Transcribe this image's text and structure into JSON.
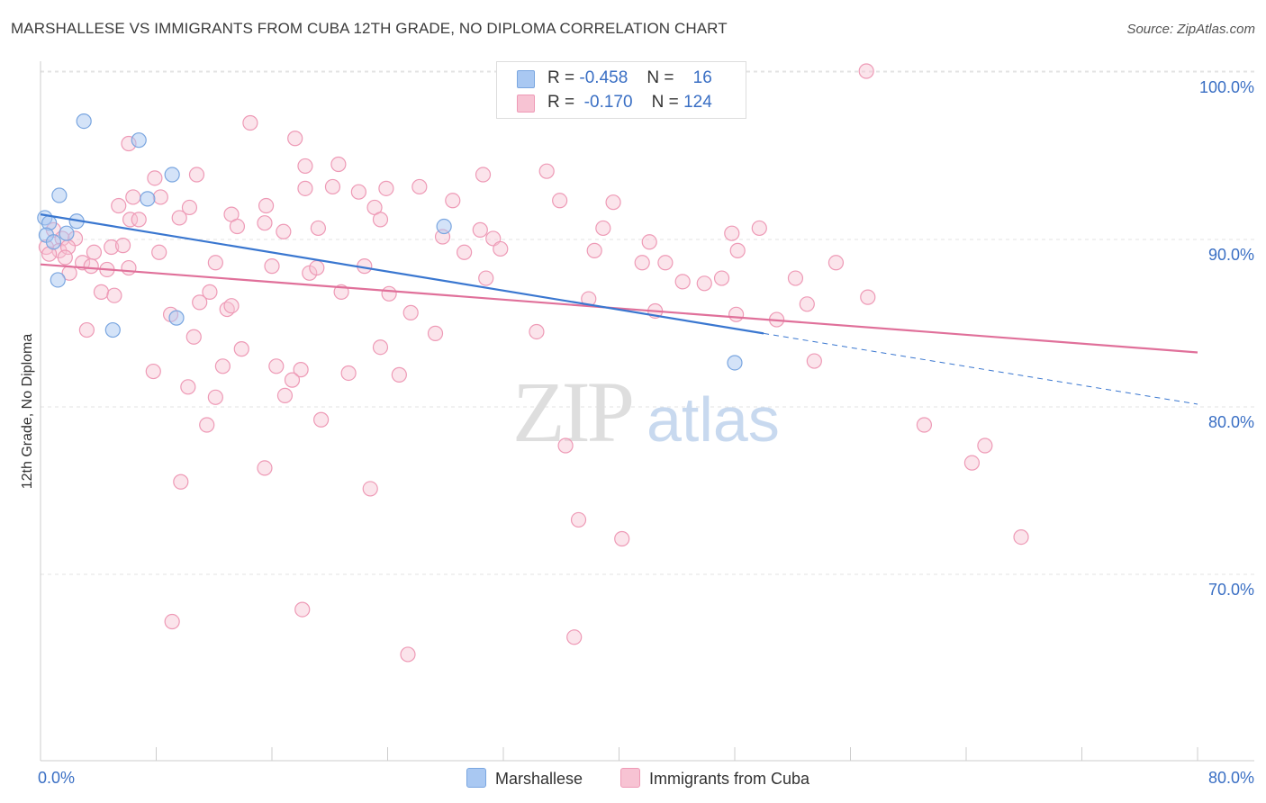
{
  "title": "MARSHALLESE VS IMMIGRANTS FROM CUBA 12TH GRADE, NO DIPLOMA CORRELATION CHART",
  "source": "Source: ZipAtlas.com",
  "watermark": {
    "zip": "ZIP",
    "atlas": "atlas"
  },
  "legend": {
    "marshallese": {
      "r_label": "R =",
      "r_value": "-0.458",
      "n_label": "N =",
      "n_value": "16"
    },
    "cuba": {
      "r_label": "R =",
      "r_value": "-0.170",
      "n_label": "N =",
      "n_value": "124"
    }
  },
  "bottom_legend": {
    "marshallese": "Marshallese",
    "cuba": "Immigrants from Cuba"
  },
  "colors": {
    "marshallese_fill": "#a9c8f2",
    "marshallese_stroke": "#7aa6e0",
    "marshallese_line": "#3a77d0",
    "cuba_fill": "#f7c3d3",
    "cuba_stroke": "#ee9ab6",
    "cuba_line": "#e0709a",
    "tick_label": "#3a6fc4",
    "grid": "#e3e3e3"
  },
  "chart_data": {
    "type": "scatter",
    "title": "MARSHALLESE VS IMMIGRANTS FROM CUBA 12TH GRADE, NO DIPLOMA CORRELATION CHART",
    "xlabel": "",
    "ylabel": "12th Grade, No Diploma",
    "xlim": [
      0,
      80
    ],
    "ylim": [
      59,
      101.5
    ],
    "x_tick_labels": [
      "0.0%",
      "80.0%"
    ],
    "y_ticks": [
      70,
      80,
      90,
      100
    ],
    "y_tick_labels": [
      "70.0%",
      "80.0%",
      "90.0%",
      "100.0%"
    ],
    "grid": true,
    "legend_position": "top-center",
    "series": [
      {
        "name": "Marshallese",
        "r": -0.458,
        "n": 16,
        "trend": {
          "x": [
            0,
            50
          ],
          "y": [
            91.7,
            84.8
          ],
          "dashed_to": [
            80,
            80.7
          ]
        },
        "points": [
          [
            0.3,
            91.5
          ],
          [
            0.6,
            91.2
          ],
          [
            0.4,
            90.5
          ],
          [
            0.9,
            90.1
          ],
          [
            1.3,
            92.8
          ],
          [
            1.2,
            87.9
          ],
          [
            2.5,
            91.3
          ],
          [
            1.8,
            90.6
          ],
          [
            3,
            97.1
          ],
          [
            5,
            85
          ],
          [
            6.8,
            96
          ],
          [
            7.4,
            92.6
          ],
          [
            9.1,
            94
          ],
          [
            9.4,
            85.7
          ],
          [
            27.9,
            91
          ],
          [
            48,
            83.1
          ]
        ]
      },
      {
        "name": "Immigrants from Cuba",
        "r": -0.17,
        "n": 124,
        "trend": {
          "x": [
            0,
            80
          ],
          "y": [
            88.8,
            83.7
          ]
        },
        "points": [
          [
            57.1,
            100
          ],
          [
            14.5,
            97
          ],
          [
            17.6,
            96.1
          ],
          [
            6.1,
            95.8
          ],
          [
            18.3,
            94.5
          ],
          [
            20.6,
            94.6
          ],
          [
            7.9,
            93.8
          ],
          [
            10.8,
            94
          ],
          [
            30.6,
            94
          ],
          [
            35,
            94.2
          ],
          [
            18.3,
            93.2
          ],
          [
            20.2,
            93.3
          ],
          [
            22,
            93
          ],
          [
            23.9,
            93.2
          ],
          [
            26.2,
            93.3
          ],
          [
            6.4,
            92.7
          ],
          [
            8.3,
            92.7
          ],
          [
            15.6,
            92.2
          ],
          [
            28.5,
            92.5
          ],
          [
            35.9,
            92.5
          ],
          [
            39.6,
            92.4
          ],
          [
            5.4,
            92.2
          ],
          [
            10.3,
            92.1
          ],
          [
            13.2,
            91.7
          ],
          [
            6.2,
            91.4
          ],
          [
            6.8,
            91.4
          ],
          [
            9.6,
            91.5
          ],
          [
            13.6,
            91
          ],
          [
            15.5,
            91.2
          ],
          [
            16.8,
            90.7
          ],
          [
            19.2,
            90.9
          ],
          [
            23.1,
            92.1
          ],
          [
            23.5,
            91.4
          ],
          [
            30.4,
            90.8
          ],
          [
            31.3,
            90.3
          ],
          [
            38.9,
            90.9
          ],
          [
            47.8,
            90.6
          ],
          [
            49.7,
            90.9
          ],
          [
            0.9,
            90.8
          ],
          [
            1.5,
            90.3
          ],
          [
            2.4,
            90.3
          ],
          [
            0.4,
            89.8
          ],
          [
            1.3,
            89.6
          ],
          [
            1.9,
            89.8
          ],
          [
            3.7,
            89.5
          ],
          [
            4.9,
            89.8
          ],
          [
            5.7,
            89.9
          ],
          [
            8.2,
            89.5
          ],
          [
            27.8,
            90.4
          ],
          [
            29.3,
            89.5
          ],
          [
            31.8,
            89.7
          ],
          [
            38.3,
            89.6
          ],
          [
            42.1,
            90.1
          ],
          [
            48.2,
            89.6
          ],
          [
            0.6,
            89.4
          ],
          [
            1.7,
            89.2
          ],
          [
            2.9,
            88.9
          ],
          [
            3.5,
            88.7
          ],
          [
            4.6,
            88.5
          ],
          [
            6.1,
            88.6
          ],
          [
            12.1,
            88.9
          ],
          [
            16,
            88.7
          ],
          [
            18.6,
            88.3
          ],
          [
            19.1,
            88.6
          ],
          [
            22.4,
            88.7
          ],
          [
            30.8,
            88
          ],
          [
            41.6,
            88.9
          ],
          [
            43.2,
            88.9
          ],
          [
            52.2,
            88
          ],
          [
            55,
            88.9
          ],
          [
            44.4,
            87.8
          ],
          [
            45.9,
            87.7
          ],
          [
            47.1,
            88
          ],
          [
            2,
            88.3
          ],
          [
            4.2,
            87.2
          ],
          [
            5.1,
            87
          ],
          [
            11.7,
            87.2
          ],
          [
            11,
            86.6
          ],
          [
            12.9,
            86.2
          ],
          [
            13.2,
            86.4
          ],
          [
            20.8,
            87.2
          ],
          [
            24.1,
            87.1
          ],
          [
            25.6,
            86
          ],
          [
            37.9,
            86.8
          ],
          [
            42.5,
            86.1
          ],
          [
            48.1,
            85.9
          ],
          [
            50.9,
            85.6
          ],
          [
            53,
            86.5
          ],
          [
            57.2,
            86.9
          ],
          [
            3.2,
            85
          ],
          [
            9,
            85.9
          ],
          [
            10.6,
            84.6
          ],
          [
            27.3,
            84.8
          ],
          [
            34.3,
            84.9
          ],
          [
            13.9,
            83.9
          ],
          [
            23.5,
            84
          ],
          [
            7.8,
            82.6
          ],
          [
            12.6,
            82.9
          ],
          [
            16.3,
            82.9
          ],
          [
            18,
            82.7
          ],
          [
            21.3,
            82.5
          ],
          [
            24.8,
            82.4
          ],
          [
            53.5,
            83.2
          ],
          [
            10.2,
            81.7
          ],
          [
            12.1,
            81.1
          ],
          [
            16.9,
            81.2
          ],
          [
            17.4,
            82.1
          ],
          [
            19.4,
            79.8
          ],
          [
            11.5,
            79.5
          ],
          [
            36.3,
            78.3
          ],
          [
            61.1,
            79.5
          ],
          [
            65.3,
            78.3
          ],
          [
            64.4,
            77.3
          ],
          [
            15.5,
            77
          ],
          [
            9.7,
            76.2
          ],
          [
            22.8,
            75.8
          ],
          [
            37.2,
            74
          ],
          [
            40.2,
            72.9
          ],
          [
            67.8,
            73
          ],
          [
            18.1,
            68.8
          ],
          [
            9.1,
            68.1
          ],
          [
            36.9,
            67.2
          ],
          [
            25.4,
            66.2
          ]
        ]
      }
    ]
  }
}
